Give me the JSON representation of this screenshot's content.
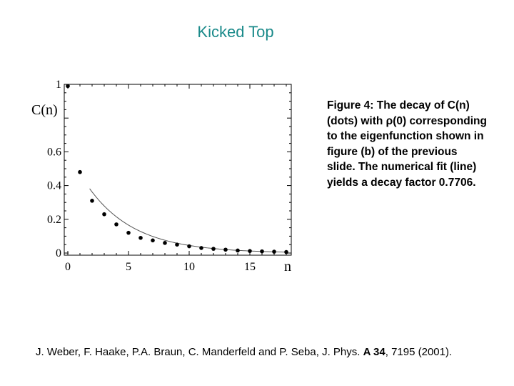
{
  "slide": {
    "title": "Kicked Top",
    "caption": "Figure 4: The decay of C(n) (dots) with ρ(0) corresponding to the eigenfunction shown in figure (b) of the previous slide. The numerical fit (line) yields a decay factor 0.7706.",
    "reference": {
      "authors": "J. Weber, F. Haake, P.A. Braun, C. Manderfeld and P. Seba, J. Phys.",
      "volume": "A 34",
      "pages": ", 7195 (2001)."
    }
  },
  "chart_data": {
    "type": "scatter",
    "title": "",
    "xlabel": "n",
    "ylabel": "C(n)",
    "xlim": [
      0,
      18.5
    ],
    "ylim": [
      0,
      1.02
    ],
    "xticks": [
      "0",
      "5",
      "10",
      "15"
    ],
    "xtick_values": [
      0,
      5,
      10,
      15
    ],
    "yticks": [
      "0",
      "0.2",
      "0.4",
      "0.6",
      "1"
    ],
    "ytick_values": [
      0,
      0.2,
      0.4,
      0.6,
      1
    ],
    "series": [
      {
        "kind": "dots",
        "x": [
          0,
          1,
          2,
          3,
          4,
          5,
          6,
          7,
          8,
          9,
          10,
          11,
          12,
          13,
          14,
          15,
          16,
          17,
          18
        ],
        "y": [
          0.99,
          0.48,
          0.31,
          0.23,
          0.17,
          0.12,
          0.09,
          0.075,
          0.06,
          0.05,
          0.04,
          0.03,
          0.025,
          0.02,
          0.015,
          0.012,
          0.01,
          0.008,
          0.006
        ]
      },
      {
        "kind": "fit-line",
        "decay_factor": 0.7706,
        "amplitude": 0.47,
        "x_range": [
          1.8,
          18
        ]
      }
    ],
    "grid": false,
    "frame": true,
    "colors": {
      "dots": "#000000",
      "line": "#555555"
    }
  }
}
